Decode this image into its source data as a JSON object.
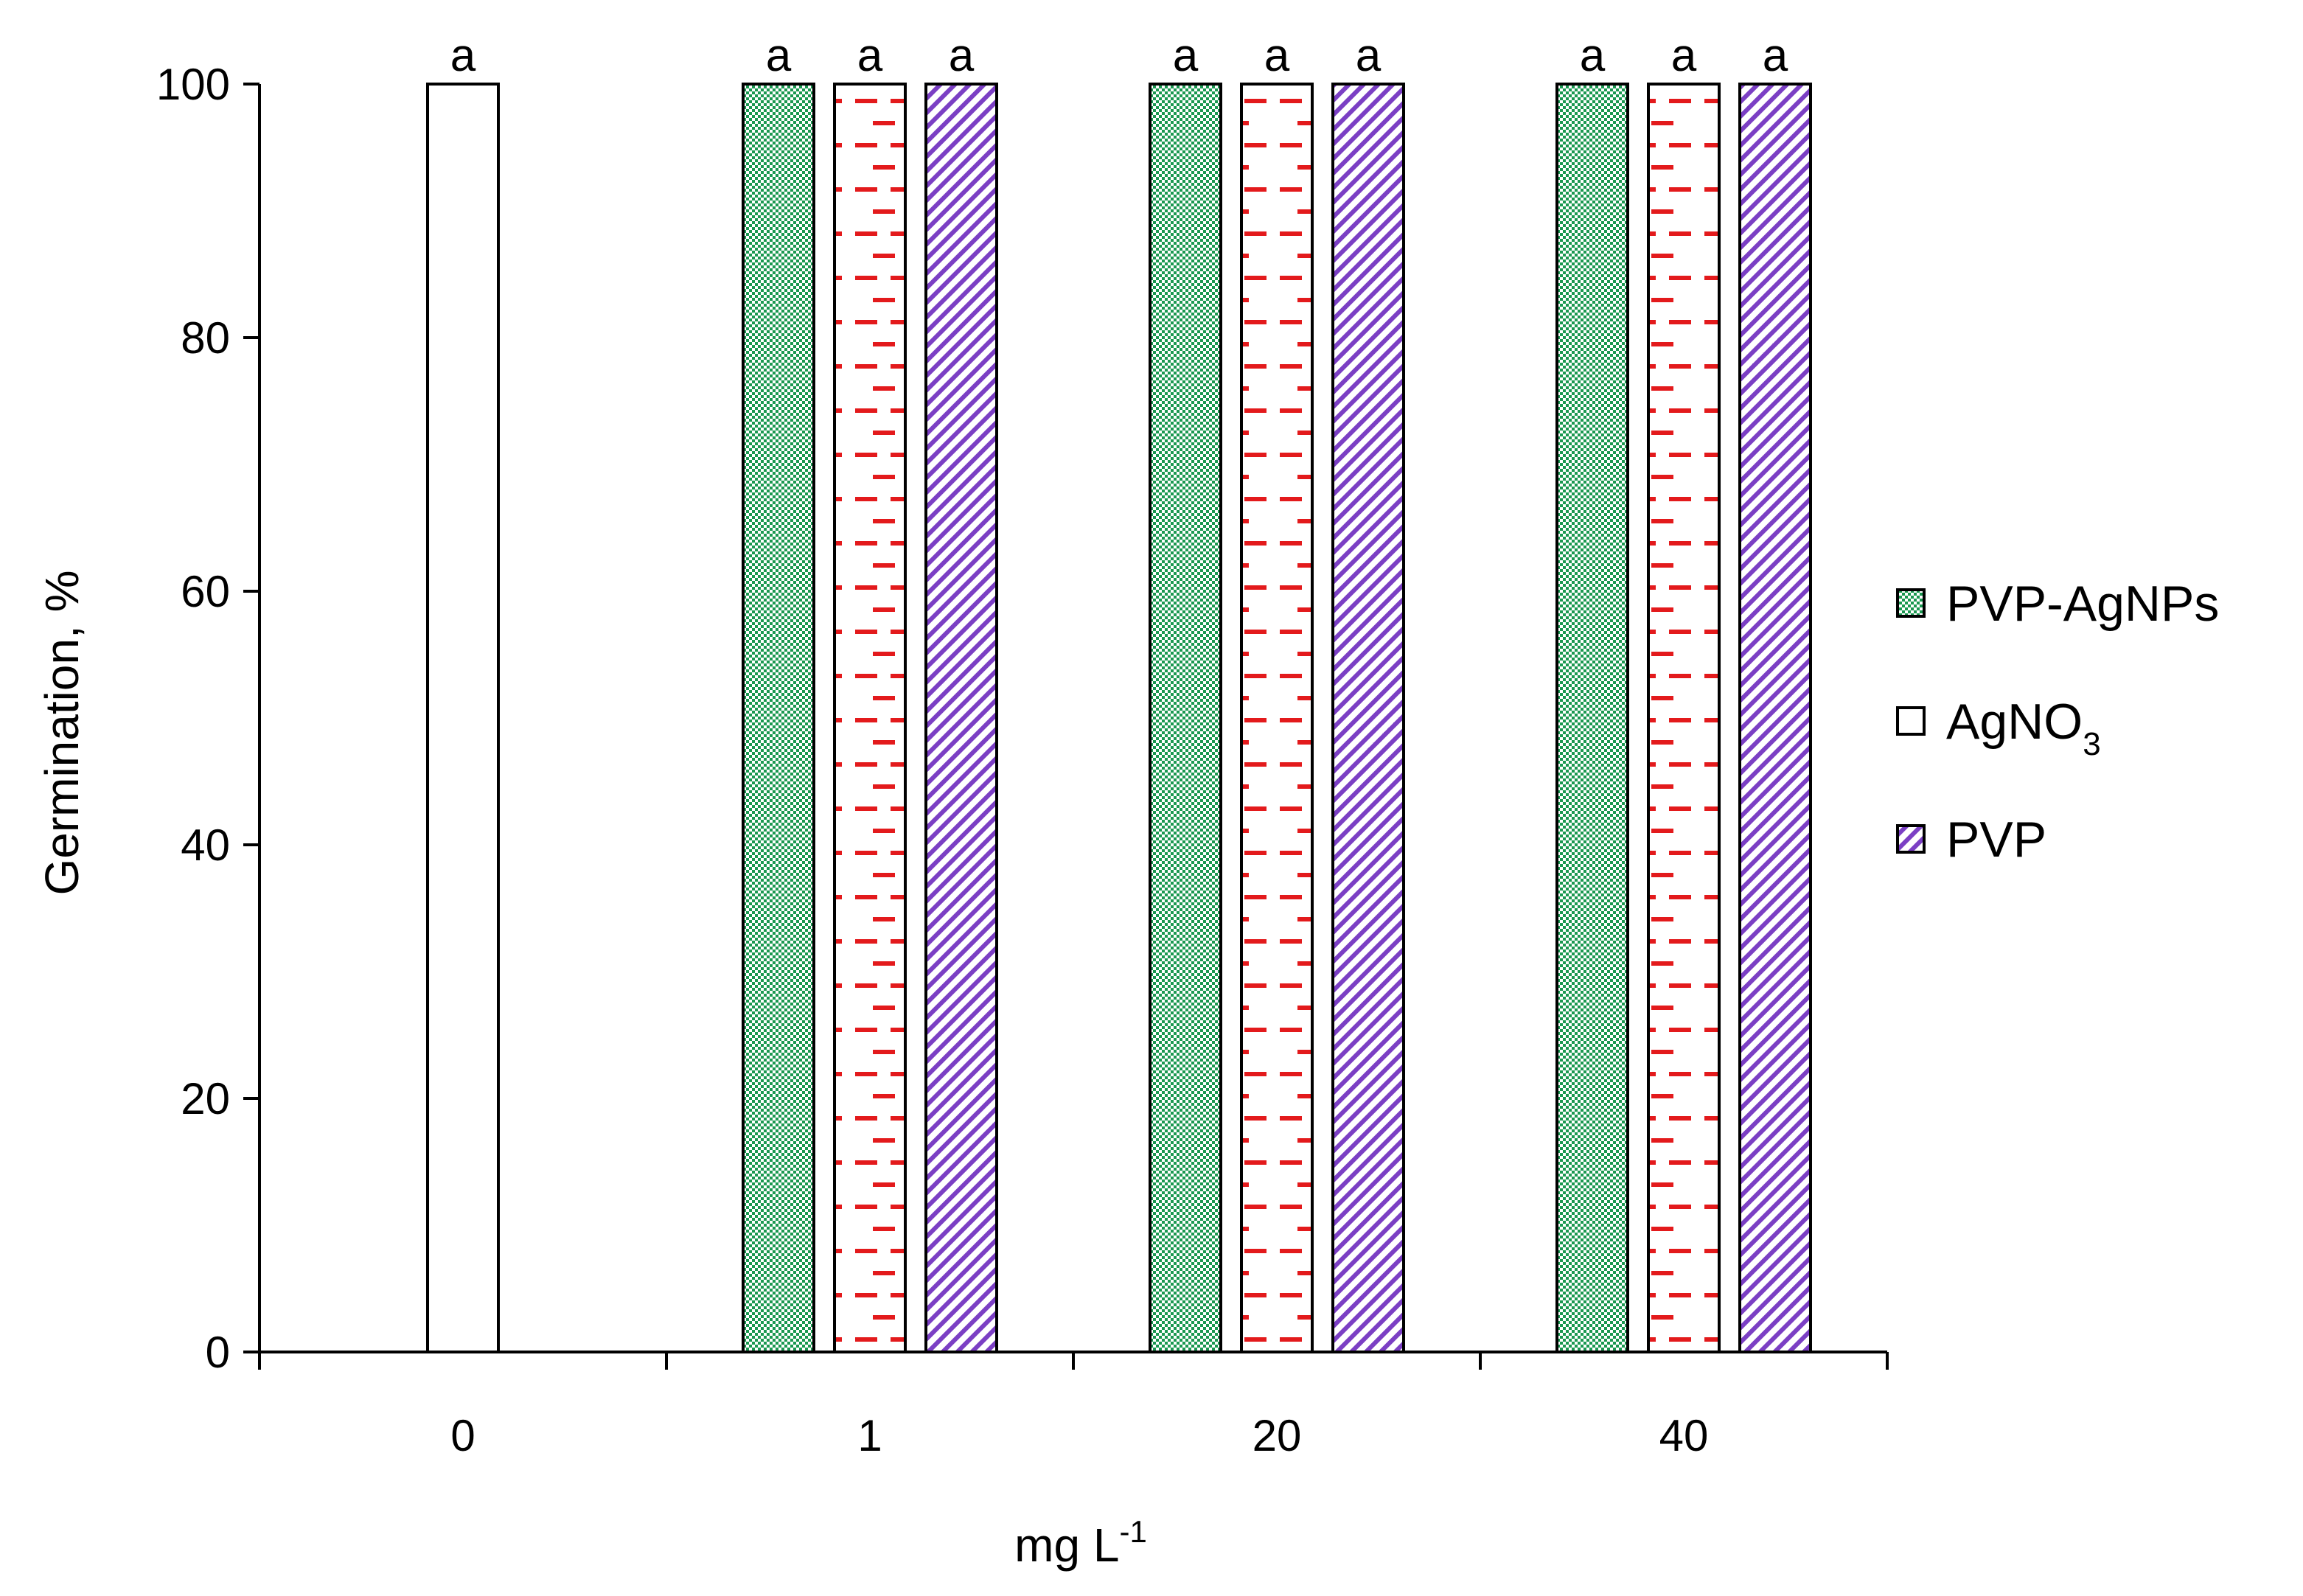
{
  "chart_data": {
    "type": "bar",
    "ylabel": "Germination,  %",
    "xlabel": {
      "base": "mg L",
      "superscript": "-1"
    },
    "ylim": [
      0,
      100
    ],
    "yticks": [
      0,
      20,
      40,
      60,
      80,
      100
    ],
    "categories": [
      "0",
      "1",
      "20",
      "40"
    ],
    "series": [
      {
        "name": "PVP-AgNPs",
        "display": {
          "base": "PVP-AgNPs",
          "sub": ""
        },
        "pattern": "checker-green",
        "color": "#1a9850",
        "values": [
          null,
          100,
          100,
          100
        ],
        "labels": [
          null,
          "a",
          "a",
          "a"
        ]
      },
      {
        "name": "AgNO3",
        "display": {
          "base": "AgNO",
          "sub": "3"
        },
        "pattern": "plain-or-red-dash",
        "color": "#e31a1c",
        "values": [
          100,
          100,
          100,
          100
        ],
        "labels": [
          "a",
          "a",
          "a",
          "a"
        ]
      },
      {
        "name": "PVP",
        "display": {
          "base": "PVP",
          "sub": ""
        },
        "pattern": "diagonal-purple",
        "color": "#7b3fc4",
        "values": [
          null,
          100,
          100,
          100
        ],
        "labels": [
          null,
          "a",
          "a",
          "a"
        ]
      }
    ],
    "grid": false,
    "legend_position": "right"
  }
}
